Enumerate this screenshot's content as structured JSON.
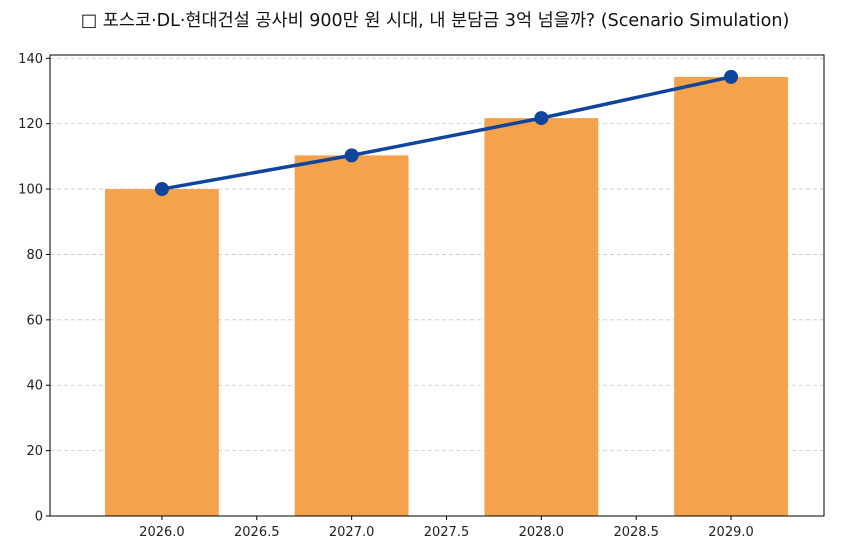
{
  "chart_data": {
    "type": "bar",
    "title": "□ 포스코·DL·현대건설 공사비 900만 원 시대, 내 분담금 3억 넘을까? (Scenario Simulation)",
    "xlabel": "",
    "ylabel": "",
    "x": [
      2026,
      2027,
      2028,
      2029
    ],
    "values": [
      100,
      110.3,
      121.7,
      134.3
    ],
    "line_values": [
      100,
      110.3,
      121.7,
      134.3
    ],
    "xlim": [
      2025.41,
      2029.49
    ],
    "ylim": [
      0,
      141
    ],
    "xticks": [
      "2026.0",
      "2026.5",
      "2027.0",
      "2027.5",
      "2028.0",
      "2028.5",
      "2029.0"
    ],
    "yticks": [
      "0",
      "20",
      "40",
      "60",
      "80",
      "100",
      "120",
      "140"
    ],
    "grid": "y-dashed",
    "legend": "none",
    "bar_color": "#f5a24c",
    "line_color": "#0f459c"
  }
}
